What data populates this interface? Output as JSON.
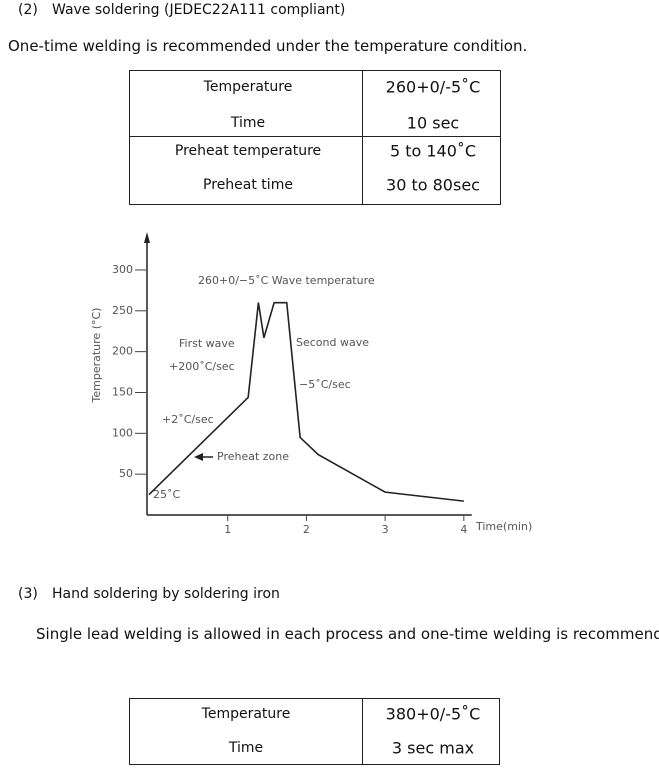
{
  "section_2": {
    "number": "(2)",
    "title": "Wave soldering (JEDEC22A111 compliant)",
    "text": "One-time welding is recommended under the temperature condition."
  },
  "table_1": {
    "rows": [
      [
        "Temperature",
        "260+0/-5˚C"
      ],
      [
        "Time",
        "10 sec"
      ],
      [
        "Preheat temperature",
        "5 to 140˚C"
      ],
      [
        "Preheat time",
        "30 to 80sec"
      ]
    ]
  },
  "chart_data": {
    "type": "line",
    "y_label": "Temperature (°C)",
    "x_label": "Time(min)",
    "x": [
      0,
      1.26,
      1.39,
      1.46,
      1.59,
      1.75,
      1.92,
      2.15,
      3.0,
      4.0
    ],
    "values": [
      25,
      144,
      260,
      217,
      260,
      260,
      95,
      74,
      28,
      17
    ],
    "color": "#222222",
    "xlim": [
      0,
      4.1
    ],
    "ylim": [
      0,
      340
    ],
    "xticks": [
      1,
      2,
      3,
      4
    ],
    "yticks": [
      50,
      100,
      150,
      200,
      250,
      300
    ],
    "annotations": [
      "260+0/−5˚C Wave temperature",
      "First wave",
      "+200˚C/sec",
      "Second wave",
      "−5˚C/sec",
      "+2˚C/sec",
      "Preheat zone",
      "25˚C"
    ]
  },
  "section_3": {
    "number": "(3)",
    "title": "Hand soldering by soldering iron",
    "text": "Single lead welding is allowed in each process and one-time welding is recommended."
  },
  "table_2": {
    "rows": [
      [
        "Temperature",
        "380+0/-5˚C"
      ],
      [
        "Time",
        "3 sec max"
      ]
    ]
  }
}
